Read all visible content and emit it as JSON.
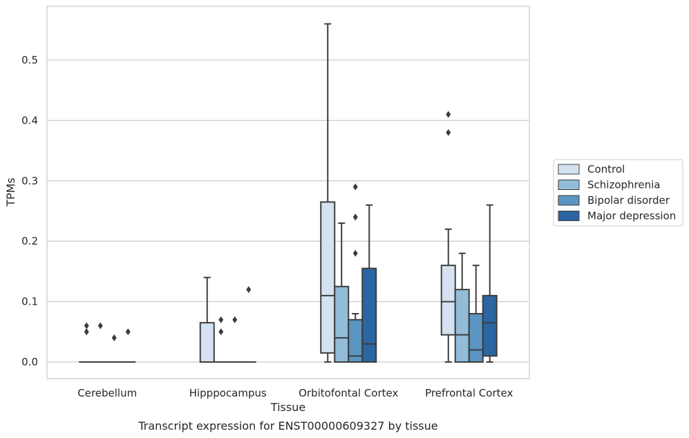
{
  "chart_data": {
    "type": "boxplot",
    "xlabel": "Tissue",
    "ylabel": "TPMs",
    "caption": "Transcript expression for ENST00000609327 by tissue",
    "ylim": [
      -0.027,
      0.59
    ],
    "yticks": [
      "0.0",
      "0.1",
      "0.2",
      "0.3",
      "0.4",
      "0.5"
    ],
    "grid": "horizontal",
    "legend_position": "right",
    "categories": [
      "Cerebellum",
      "Hipppocampus",
      "Orbitofontal Cortex",
      "Prefrontal Cortex"
    ],
    "series": [
      {
        "name": "Control",
        "color": "#d4e2f1",
        "boxes": [
          {
            "whislo": 0,
            "q1": 0,
            "med": 0,
            "q3": 0,
            "whishi": 0,
            "fliers": [
              0.06,
              0.05
            ]
          },
          {
            "whislo": 0,
            "q1": 0,
            "med": 0,
            "q3": 0.065,
            "whishi": 0.14,
            "fliers": []
          },
          {
            "whislo": 0,
            "q1": 0.015,
            "med": 0.11,
            "q3": 0.265,
            "whishi": 0.56,
            "fliers": []
          },
          {
            "whislo": 0,
            "q1": 0.045,
            "med": 0.1,
            "q3": 0.16,
            "whishi": 0.22,
            "fliers": [
              0.41,
              0.38
            ]
          }
        ]
      },
      {
        "name": "Schizophrenia",
        "color": "#92bcd8",
        "boxes": [
          {
            "whislo": 0,
            "q1": 0,
            "med": 0,
            "q3": 0,
            "whishi": 0,
            "fliers": [
              0.06
            ]
          },
          {
            "whislo": 0,
            "q1": 0,
            "med": 0,
            "q3": 0,
            "whishi": 0,
            "fliers": [
              0.07,
              0.05
            ]
          },
          {
            "whislo": 0,
            "q1": 0,
            "med": 0.04,
            "q3": 0.125,
            "whishi": 0.23,
            "fliers": []
          },
          {
            "whislo": 0,
            "q1": 0,
            "med": 0.045,
            "q3": 0.12,
            "whishi": 0.18,
            "fliers": []
          }
        ]
      },
      {
        "name": "Bipolar disorder",
        "color": "#5b95c2",
        "boxes": [
          {
            "whislo": 0,
            "q1": 0,
            "med": 0,
            "q3": 0,
            "whishi": 0,
            "fliers": [
              0.04
            ]
          },
          {
            "whislo": 0,
            "q1": 0,
            "med": 0,
            "q3": 0,
            "whishi": 0,
            "fliers": [
              0.07
            ]
          },
          {
            "whislo": 0,
            "q1": 0,
            "med": 0.01,
            "q3": 0.07,
            "whishi": 0.08,
            "fliers": [
              0.29,
              0.24,
              0.18
            ]
          },
          {
            "whislo": 0,
            "q1": 0,
            "med": 0.02,
            "q3": 0.08,
            "whishi": 0.16,
            "fliers": []
          }
        ]
      },
      {
        "name": "Major depression",
        "color": "#2b65a2",
        "boxes": [
          {
            "whislo": 0,
            "q1": 0,
            "med": 0,
            "q3": 0,
            "whishi": 0,
            "fliers": [
              0.05
            ]
          },
          {
            "whislo": 0,
            "q1": 0,
            "med": 0,
            "q3": 0,
            "whishi": 0,
            "fliers": [
              0.12
            ]
          },
          {
            "whislo": 0,
            "q1": 0,
            "med": 0.03,
            "q3": 0.155,
            "whishi": 0.26,
            "fliers": []
          },
          {
            "whislo": 0,
            "q1": 0.01,
            "med": 0.065,
            "q3": 0.11,
            "whishi": 0.26,
            "fliers": []
          }
        ]
      }
    ]
  }
}
